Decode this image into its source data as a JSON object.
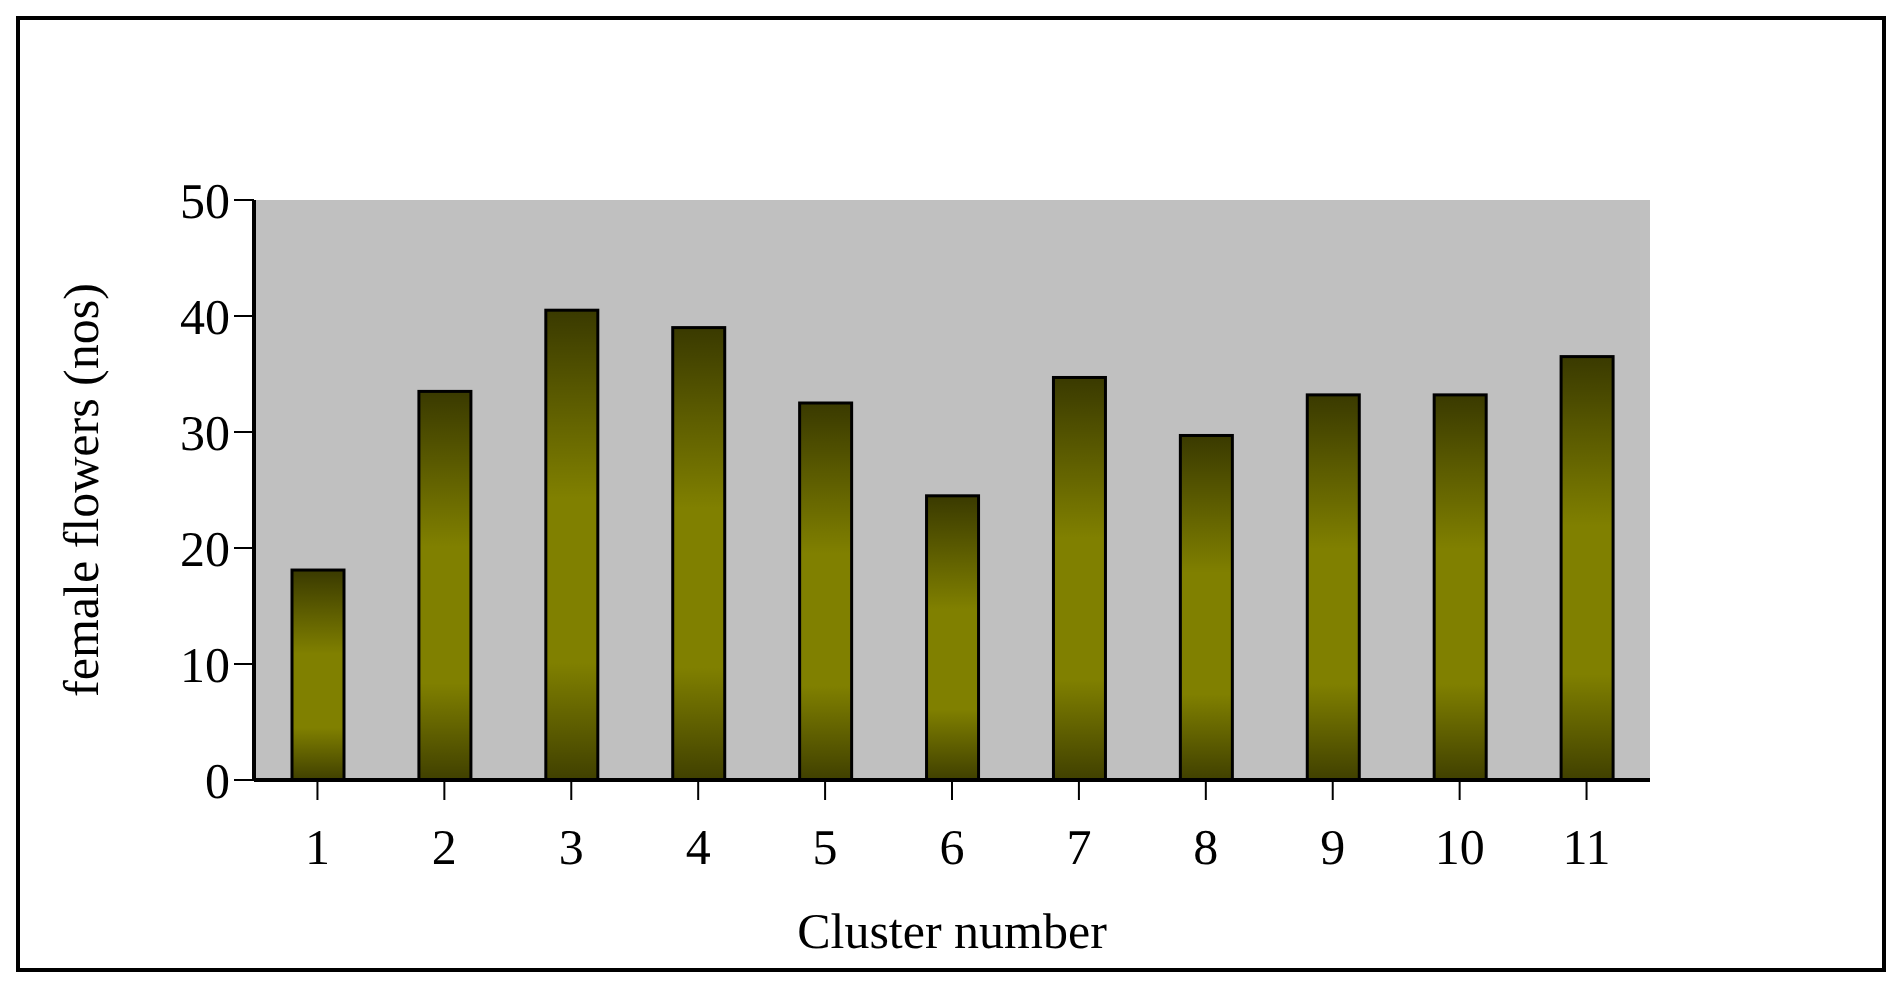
{
  "chart_data": {
    "type": "bar",
    "xlabel": "Cluster number",
    "ylabel": "female flowers (nos)",
    "categories": [
      "1",
      "2",
      "3",
      "4",
      "5",
      "6",
      "7",
      "8",
      "9",
      "10",
      "11"
    ],
    "values": [
      18.1,
      33.5,
      40.5,
      39.0,
      32.5,
      24.5,
      34.7,
      29.7,
      33.2,
      33.2,
      36.5
    ],
    "color": "#808000",
    "ylim": [
      0,
      50
    ],
    "yticks": [
      0,
      10,
      20,
      30,
      40,
      50
    ],
    "grid": false,
    "legend": false
  }
}
